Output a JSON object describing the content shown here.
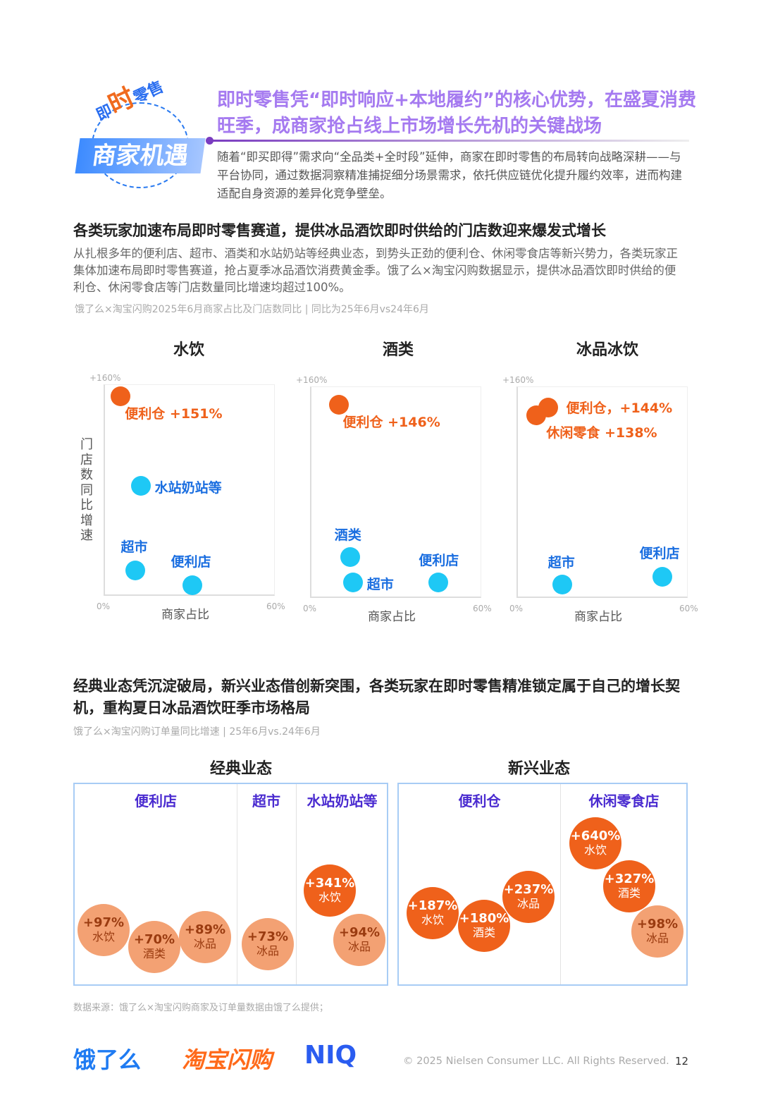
{
  "badge": {
    "top_small1": "即",
    "top_big": "时",
    "top_small2": "零售",
    "main": "商家机遇"
  },
  "headline": "即时零售凭“即时响应+本地履约”的核心优势，在盛夏消费旺季，成商家抢占线上市场增长先机的关键战场",
  "intro": "随着“即买即得”需求向“全品类+全时段”延伸，商家在即时零售的布局转向战略深耕——与平台协同，通过数据洞察精准捕捉细分场景需求，依托供应链优化提升履约效率，进而构建适配自身资源的差异化竞争壁垒。",
  "section1": {
    "title": "各类玩家加速布局即时零售赛道，提供冰品酒饮即时供给的门店数迎来爆发式增长",
    "body": "从扎根多年的便利店、超市、酒类和水站奶站等经典业态，到势头正劲的便利仓、休闲零食店等新兴势力，各类玩家正集体加速布局即时零售赛道，抢占夏季冰品酒饮消费黄金季。饿了么×淘宝闪购数据显示，提供冰品酒饮即时供给的便利仓、休闲零食店等门店数量同比增速均超过100%。",
    "source": "饿了么×淘宝闪购2025年6月商家占比及门店数同比 | 同比为25年6月vs24年6月"
  },
  "colors": {
    "orange": "#ef611b",
    "cyan": "#1ec8f5",
    "purple": "#4a2bd0",
    "light_orange": "#f3a173"
  },
  "chart_data": [
    {
      "type": "scatter",
      "title": "水饮",
      "xlabel": "商家占比",
      "ylabel": "门店数同比增速",
      "xlim": [
        0,
        60
      ],
      "ylim": [
        0,
        160
      ],
      "x_ticks": [
        "0%",
        "60%"
      ],
      "y_ticks": [
        "+160%"
      ],
      "points": [
        {
          "name": "便利仓",
          "label": "便利仓 +151%",
          "x": 6,
          "y": 151,
          "color": "orange"
        },
        {
          "name": "水站奶站等",
          "label": "水站奶站等",
          "x": 13,
          "y": 83,
          "color": "cyan"
        },
        {
          "name": "超市",
          "label": "超市",
          "x": 11,
          "y": 19,
          "color": "cyan"
        },
        {
          "name": "便利店",
          "label": "便利店",
          "x": 31,
          "y": 8,
          "color": "cyan"
        }
      ]
    },
    {
      "type": "scatter",
      "title": "酒类",
      "xlabel": "商家占比",
      "xlim": [
        0,
        60
      ],
      "ylim": [
        0,
        160
      ],
      "x_ticks": [
        "0%",
        "60%"
      ],
      "y_ticks": [
        "+160%"
      ],
      "points": [
        {
          "name": "便利仓",
          "label": "便利仓 +146%",
          "x": 10,
          "y": 146,
          "color": "orange"
        },
        {
          "name": "酒类",
          "label": "酒类",
          "x": 14,
          "y": 31,
          "color": "cyan"
        },
        {
          "name": "超市",
          "label": "超市",
          "x": 15,
          "y": 12,
          "color": "cyan"
        },
        {
          "name": "便利店",
          "label": "便利店",
          "x": 45,
          "y": 12,
          "color": "cyan"
        }
      ]
    },
    {
      "type": "scatter",
      "title": "冰品冰饮",
      "xlabel": "商家占比",
      "xlim": [
        0,
        60
      ],
      "ylim": [
        0,
        160
      ],
      "x_ticks": [
        "0%",
        "60%"
      ],
      "y_ticks": [
        "+160%"
      ],
      "points": [
        {
          "name": "便利仓",
          "label": "便利仓，+144%",
          "x": 11,
          "y": 144,
          "color": "orange"
        },
        {
          "name": "休闲零食",
          "label": "休闲零食 +138%",
          "x": 7,
          "y": 138,
          "color": "orange"
        },
        {
          "name": "超市",
          "label": "超市",
          "x": 16,
          "y": 10,
          "color": "cyan"
        },
        {
          "name": "便利店",
          "label": "便利店",
          "x": 51,
          "y": 16,
          "color": "cyan"
        }
      ]
    }
  ],
  "section2": {
    "title": "经典业态凭沉淀破局，新兴业态借创新突围，各类玩家在即时零售精准锁定属于自己的增长契机，重构夏日冰品酒饮旺季市场格局",
    "source": "饿了么×淘宝闪购订单量同比增速 | 25年6月vs.24年6月",
    "classic": {
      "title": "经典业态",
      "cols": [
        {
          "name": "便利店",
          "items": [
            {
              "v": "+97%",
              "c": "水饮"
            },
            {
              "v": "+70%",
              "c": "酒类"
            },
            {
              "v": "+89%",
              "c": "冰品"
            }
          ]
        },
        {
          "name": "超市",
          "items": [
            {
              "v": "+73%",
              "c": "冰品"
            }
          ]
        },
        {
          "name": "水站奶站等",
          "items": [
            {
              "v": "+341%",
              "c": "水饮"
            },
            {
              "v": "+94%",
              "c": "冰品"
            }
          ]
        }
      ]
    },
    "emerging": {
      "title": "新兴业态",
      "cols": [
        {
          "name": "便利仓",
          "items": [
            {
              "v": "+187%",
              "c": "水饮"
            },
            {
              "v": "+180%",
              "c": "酒类"
            },
            {
              "v": "+237%",
              "c": "冰品"
            }
          ]
        },
        {
          "name": "休闲零食店",
          "items": [
            {
              "v": "+640%",
              "c": "水饮"
            },
            {
              "v": "+327%",
              "c": "酒类"
            },
            {
              "v": "+98%",
              "c": "冰品"
            }
          ]
        }
      ]
    }
  },
  "data_source": "数据来源：饿了么×淘宝闪购商家及订单量数据由饿了么提供；",
  "footer": {
    "logo1": "饿了么",
    "logo2": "淘宝闪购",
    "logo3": "NIQ",
    "copyright": "© 2025 Nielsen Consumer LLC. All Rights Reserved.",
    "page": "12"
  }
}
